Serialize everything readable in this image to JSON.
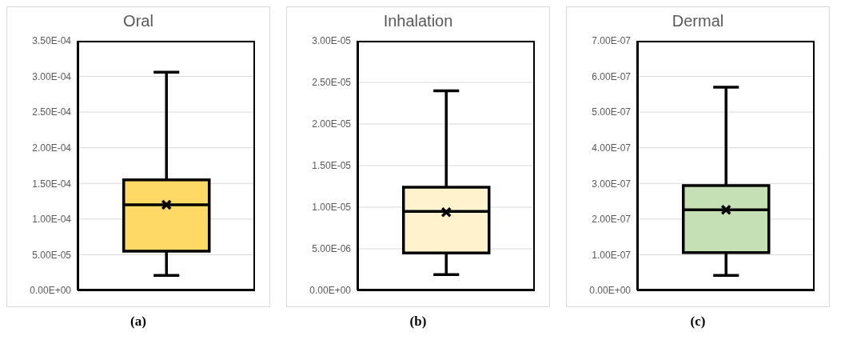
{
  "chart_data": [
    {
      "type": "box",
      "title": "Oral",
      "categories": [
        null
      ],
      "series": [
        {
          "color": "#ffd966",
          "boxes": [
            {
              "low": 2.1e-05,
              "q1": 5.5e-05,
              "median": 0.00012,
              "q3": 0.000155,
              "high": 0.000306,
              "mean": 0.00012
            }
          ]
        }
      ],
      "ylim": [
        0,
        0.00035
      ],
      "yticks": [
        {
          "value": 0,
          "label": "0.00E+00"
        },
        {
          "value": 5e-05,
          "label": "5.00E-05"
        },
        {
          "value": 0.0001,
          "label": "1.00E-04"
        },
        {
          "value": 0.00015,
          "label": "1.50E-04"
        },
        {
          "value": 0.0002,
          "label": "2.00E-04"
        },
        {
          "value": 0.00025,
          "label": "2.50E-04"
        },
        {
          "value": 0.0003,
          "label": "3.00E-04"
        },
        {
          "value": 0.00035,
          "label": "3.50E-04"
        }
      ],
      "grid": "y",
      "annotations": [
        "(a)"
      ]
    },
    {
      "type": "box",
      "title": "Inhalation",
      "categories": [
        null
      ],
      "series": [
        {
          "color": "#fff2cc",
          "boxes": [
            {
              "low": 1.9e-06,
              "q1": 4.5e-06,
              "median": 9.5e-06,
              "q3": 1.24e-05,
              "high": 2.4e-05,
              "mean": 9.4e-06
            }
          ]
        }
      ],
      "ylim": [
        0,
        3e-05
      ],
      "yticks": [
        {
          "value": 0,
          "label": "0.00E+00"
        },
        {
          "value": 5e-06,
          "label": "5.00E-06"
        },
        {
          "value": 1e-05,
          "label": "1.00E-05"
        },
        {
          "value": 1.5e-05,
          "label": "1.50E-05"
        },
        {
          "value": 2e-05,
          "label": "2.00E-05"
        },
        {
          "value": 2.5e-05,
          "label": "2.50E-05"
        },
        {
          "value": 3e-05,
          "label": "3.00E-05"
        }
      ],
      "grid": "y",
      "annotations": [
        "(b)"
      ]
    },
    {
      "type": "box",
      "title": "Dermal",
      "categories": [
        null
      ],
      "series": [
        {
          "color": "#c5e0b4",
          "boxes": [
            {
              "low": 4.2e-08,
              "q1": 1.06e-07,
              "median": 2.26e-07,
              "q3": 2.94e-07,
              "high": 5.7e-07,
              "mean": 2.26e-07
            }
          ]
        }
      ],
      "ylim": [
        0,
        7e-07
      ],
      "yticks": [
        {
          "value": 0,
          "label": "0.00E+00"
        },
        {
          "value": 1e-07,
          "label": "1.00E-07"
        },
        {
          "value": 2e-07,
          "label": "2.00E-07"
        },
        {
          "value": 3e-07,
          "label": "3.00E-07"
        },
        {
          "value": 4e-07,
          "label": "4.00E-07"
        },
        {
          "value": 5e-07,
          "label": "5.00E-07"
        },
        {
          "value": 6e-07,
          "label": "6.00E-07"
        },
        {
          "value": 7e-07,
          "label": "7.00E-07"
        }
      ],
      "grid": "y",
      "annotations": [
        "(c)"
      ]
    }
  ]
}
